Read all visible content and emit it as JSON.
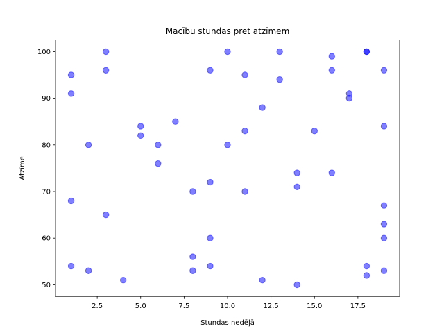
{
  "chart_data": {
    "type": "scatter",
    "title": "Macību stundas pret atzīmem",
    "xlabel": "Stundas nedēļā",
    "ylabel": "Atzīme",
    "xlim": [
      0.1,
      19.9
    ],
    "ylim": [
      47.5,
      102.5
    ],
    "xticks": [
      2.5,
      5.0,
      7.5,
      10.0,
      12.5,
      15.0,
      17.5
    ],
    "xtick_labels": [
      "2.5",
      "5.0",
      "7.5",
      "10.0",
      "12.5",
      "15.0",
      "17.5"
    ],
    "yticks": [
      50,
      60,
      70,
      80,
      90,
      100
    ],
    "ytick_labels": [
      "50",
      "60",
      "70",
      "80",
      "90",
      "100"
    ],
    "grid": false,
    "marker_color": "#0000ff",
    "marker_alpha": 0.5,
    "points": [
      {
        "x": 1,
        "y": 95
      },
      {
        "x": 1,
        "y": 91
      },
      {
        "x": 1,
        "y": 68
      },
      {
        "x": 1,
        "y": 54
      },
      {
        "x": 2,
        "y": 80
      },
      {
        "x": 2,
        "y": 53
      },
      {
        "x": 3,
        "y": 100
      },
      {
        "x": 3,
        "y": 96
      },
      {
        "x": 3,
        "y": 65
      },
      {
        "x": 4,
        "y": 51
      },
      {
        "x": 5,
        "y": 84
      },
      {
        "x": 5,
        "y": 82
      },
      {
        "x": 6,
        "y": 80
      },
      {
        "x": 6,
        "y": 76
      },
      {
        "x": 7,
        "y": 85
      },
      {
        "x": 8,
        "y": 70
      },
      {
        "x": 8,
        "y": 56
      },
      {
        "x": 8,
        "y": 53
      },
      {
        "x": 9,
        "y": 96
      },
      {
        "x": 9,
        "y": 72
      },
      {
        "x": 9,
        "y": 60
      },
      {
        "x": 9,
        "y": 54
      },
      {
        "x": 10,
        "y": 100
      },
      {
        "x": 10,
        "y": 80
      },
      {
        "x": 11,
        "y": 95
      },
      {
        "x": 11,
        "y": 83
      },
      {
        "x": 11,
        "y": 70
      },
      {
        "x": 12,
        "y": 88
      },
      {
        "x": 12,
        "y": 51
      },
      {
        "x": 13,
        "y": 100
      },
      {
        "x": 13,
        "y": 94
      },
      {
        "x": 14,
        "y": 74
      },
      {
        "x": 14,
        "y": 71
      },
      {
        "x": 14,
        "y": 50
      },
      {
        "x": 15,
        "y": 83
      },
      {
        "x": 16,
        "y": 99
      },
      {
        "x": 16,
        "y": 96
      },
      {
        "x": 16,
        "y": 74
      },
      {
        "x": 17,
        "y": 91
      },
      {
        "x": 17,
        "y": 90
      },
      {
        "x": 18,
        "y": 100
      },
      {
        "x": 18,
        "y": 100
      },
      {
        "x": 18,
        "y": 54
      },
      {
        "x": 18,
        "y": 52
      },
      {
        "x": 19,
        "y": 96
      },
      {
        "x": 19,
        "y": 84
      },
      {
        "x": 19,
        "y": 67
      },
      {
        "x": 19,
        "y": 63
      },
      {
        "x": 19,
        "y": 60
      },
      {
        "x": 19,
        "y": 53
      }
    ]
  }
}
